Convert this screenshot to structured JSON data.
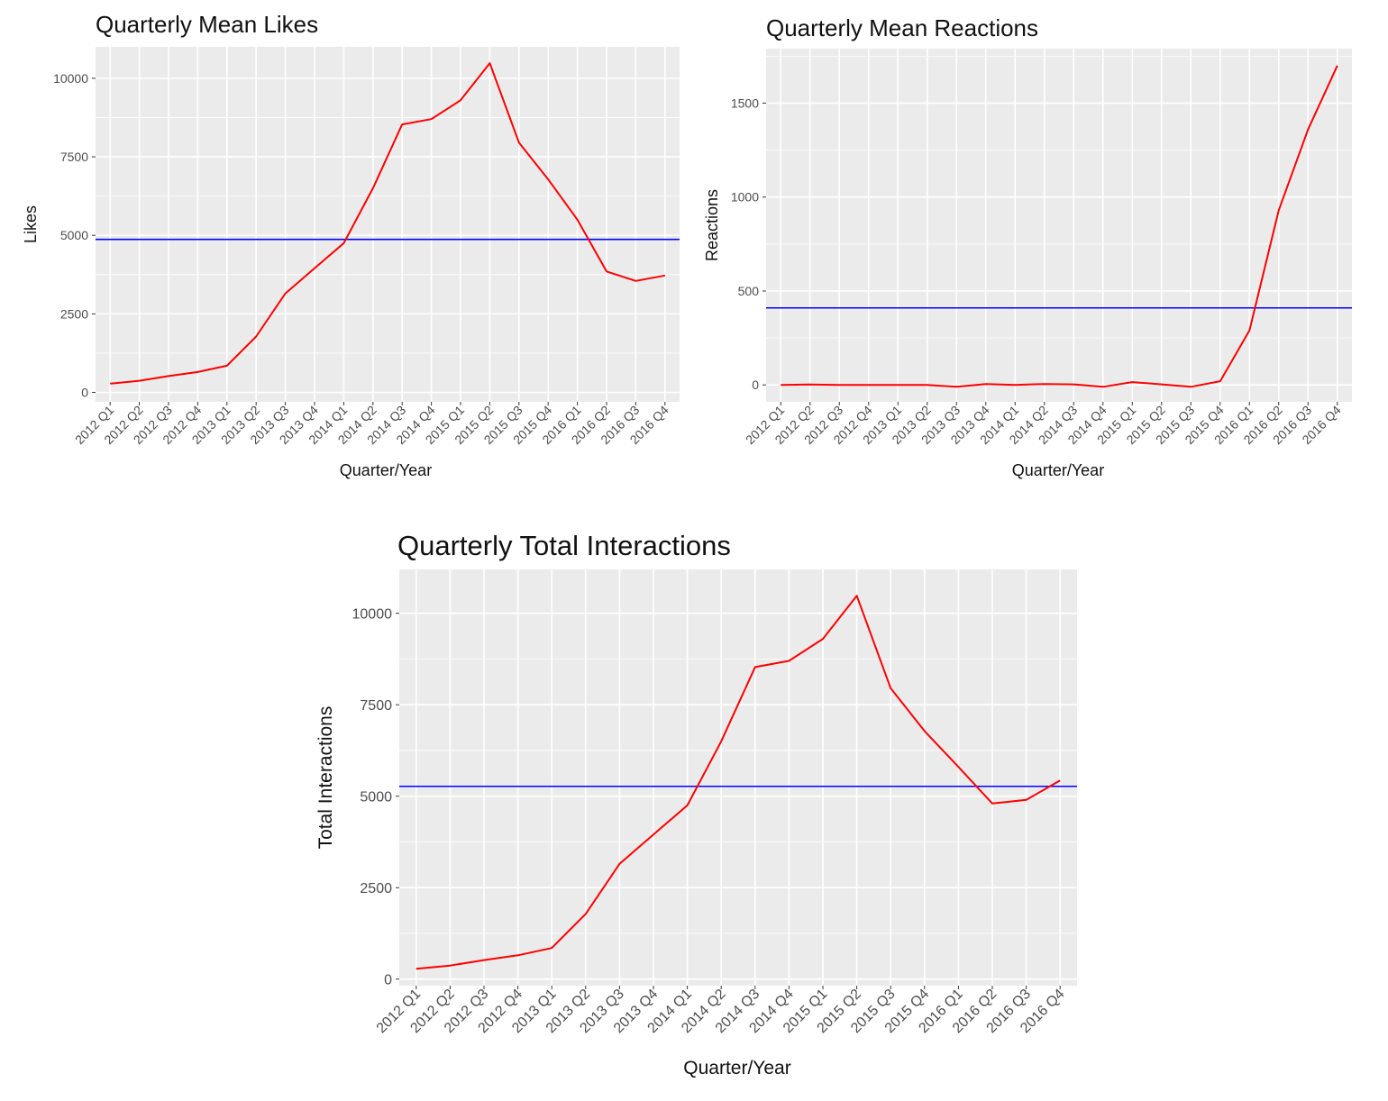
{
  "colors": {
    "panel_bg": "#ebebeb",
    "grid": "#ffffff",
    "series_line": "#ff0000",
    "mean_line": "#0000ff",
    "tick_text": "#4d4d4d",
    "title_text": "#111111"
  },
  "chart_data": [
    {
      "type": "line",
      "title": "Quarterly Mean Likes",
      "xlabel": "Quarter/Year",
      "ylabel": "Likes",
      "grid": true,
      "categories": [
        "2012 Q1",
        "2012 Q2",
        "2012 Q3",
        "2012 Q4",
        "2013 Q1",
        "2013 Q2",
        "2013 Q3",
        "2013 Q4",
        "2014 Q1",
        "2014 Q2",
        "2014 Q3",
        "2014 Q4",
        "2015 Q1",
        "2015 Q2",
        "2015 Q3",
        "2015 Q4",
        "2016 Q1",
        "2016 Q2",
        "2016 Q3",
        "2016 Q4"
      ],
      "series": [
        {
          "values": [
            280,
            370,
            520,
            650,
            850,
            1780,
            3150,
            3950,
            4750,
            6500,
            8530,
            8700,
            9300,
            10480,
            7950,
            6780,
            5500,
            3850,
            3550,
            3720
          ]
        }
      ],
      "mean_line": 4870,
      "ylim": [
        -300,
        11000
      ],
      "yticks": [
        0,
        2500,
        5000,
        7500,
        10000
      ]
    },
    {
      "type": "line",
      "title": "Quarterly Mean Reactions",
      "xlabel": "Quarter/Year",
      "ylabel": "Reactions",
      "grid": true,
      "categories": [
        "2012 Q1",
        "2012 Q2",
        "2012 Q3",
        "2012 Q4",
        "2013 Q1",
        "2013 Q2",
        "2013 Q3",
        "2013 Q4",
        "2014 Q1",
        "2014 Q2",
        "2014 Q3",
        "2014 Q4",
        "2015 Q1",
        "2015 Q2",
        "2015 Q3",
        "2015 Q4",
        "2016 Q1",
        "2016 Q2",
        "2016 Q3",
        "2016 Q4"
      ],
      "series": [
        {
          "values": [
            0,
            2,
            0,
            0,
            0,
            0,
            -10,
            5,
            0,
            5,
            3,
            -10,
            15,
            3,
            -10,
            20,
            290,
            930,
            1360,
            1700
          ]
        }
      ],
      "mean_line": 410,
      "ylim": [
        -90,
        1790
      ],
      "yticks": [
        0,
        500,
        1000,
        1500
      ]
    },
    {
      "type": "line",
      "title": "Quarterly Total Interactions",
      "xlabel": "Quarter/Year",
      "ylabel": "Total Interactions",
      "grid": true,
      "categories": [
        "2012 Q1",
        "2012 Q2",
        "2012 Q3",
        "2012 Q4",
        "2013 Q1",
        "2013 Q2",
        "2013 Q3",
        "2013 Q4",
        "2014 Q1",
        "2014 Q2",
        "2014 Q3",
        "2014 Q4",
        "2015 Q1",
        "2015 Q2",
        "2015 Q3",
        "2015 Q4",
        "2016 Q1",
        "2016 Q2",
        "2016 Q3",
        "2016 Q4"
      ],
      "series": [
        {
          "values": [
            280,
            370,
            520,
            650,
            850,
            1780,
            3150,
            3950,
            4750,
            6500,
            8530,
            8700,
            9300,
            10480,
            7950,
            6780,
            5800,
            4800,
            4900,
            5430
          ]
        }
      ],
      "mean_line": 5270,
      "ylim": [
        -180,
        11200
      ],
      "yticks": [
        0,
        2500,
        5000,
        7500,
        10000
      ]
    }
  ]
}
